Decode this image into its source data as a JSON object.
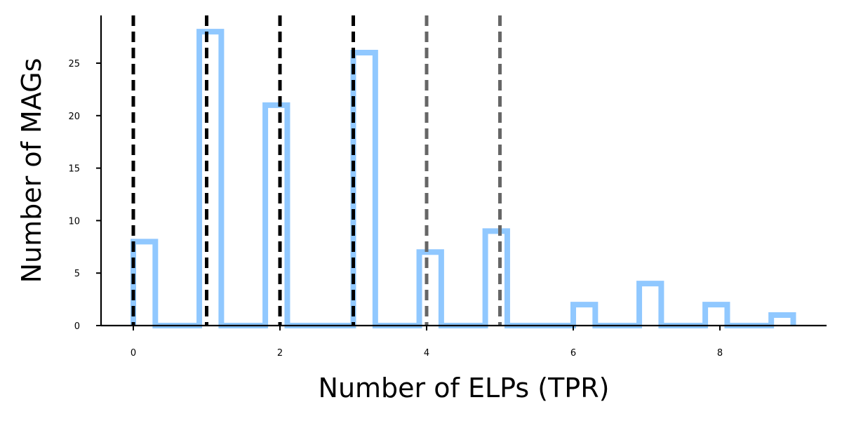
{
  "chart_data": {
    "type": "histogram",
    "title": "",
    "xlabel": "Number of ELPs (TPR)",
    "ylabel": "Number of MAGs",
    "xlim": [
      -0.45,
      9.45
    ],
    "ylim": [
      0,
      29.3
    ],
    "xticks": [
      0,
      2,
      4,
      6,
      8
    ],
    "yticks": [
      0,
      5,
      10,
      15,
      20,
      25
    ],
    "bin_width": 0.3,
    "bins": [
      {
        "x0": 0.0,
        "x1": 0.3,
        "count": 8
      },
      {
        "x0": 0.3,
        "x1": 0.9,
        "count": 0
      },
      {
        "x0": 0.9,
        "x1": 1.2,
        "count": 28
      },
      {
        "x0": 1.2,
        "x1": 1.8,
        "count": 0
      },
      {
        "x0": 1.8,
        "x1": 2.1,
        "count": 21
      },
      {
        "x0": 2.1,
        "x1": 3.0,
        "count": 0
      },
      {
        "x0": 3.0,
        "x1": 3.3,
        "count": 26
      },
      {
        "x0": 3.3,
        "x1": 3.9,
        "count": 0
      },
      {
        "x0": 3.9,
        "x1": 4.2,
        "count": 7
      },
      {
        "x0": 4.2,
        "x1": 4.8,
        "count": 0
      },
      {
        "x0": 4.8,
        "x1": 5.1,
        "count": 9
      },
      {
        "x0": 5.1,
        "x1": 6.0,
        "count": 0
      },
      {
        "x0": 6.0,
        "x1": 6.3,
        "count": 2
      },
      {
        "x0": 6.3,
        "x1": 6.9,
        "count": 0
      },
      {
        "x0": 6.9,
        "x1": 7.2,
        "count": 4
      },
      {
        "x0": 7.2,
        "x1": 7.8,
        "count": 0
      },
      {
        "x0": 7.8,
        "x1": 8.1,
        "count": 2
      },
      {
        "x0": 8.1,
        "x1": 8.7,
        "count": 0
      },
      {
        "x0": 8.7,
        "x1": 9.0,
        "count": 1
      }
    ],
    "step_color": "#90C8FF",
    "vlines": [
      {
        "x": 0,
        "color": "#000000",
        "style": "dashed"
      },
      {
        "x": 1,
        "color": "#000000",
        "style": "dashed"
      },
      {
        "x": 2,
        "color": "#000000",
        "style": "dashed"
      },
      {
        "x": 3,
        "color": "#000000",
        "style": "dashed"
      },
      {
        "x": 4,
        "color": "#666666",
        "style": "dashed"
      },
      {
        "x": 5,
        "color": "#666666",
        "style": "dashed"
      }
    ],
    "grid": false,
    "legend": "none"
  }
}
